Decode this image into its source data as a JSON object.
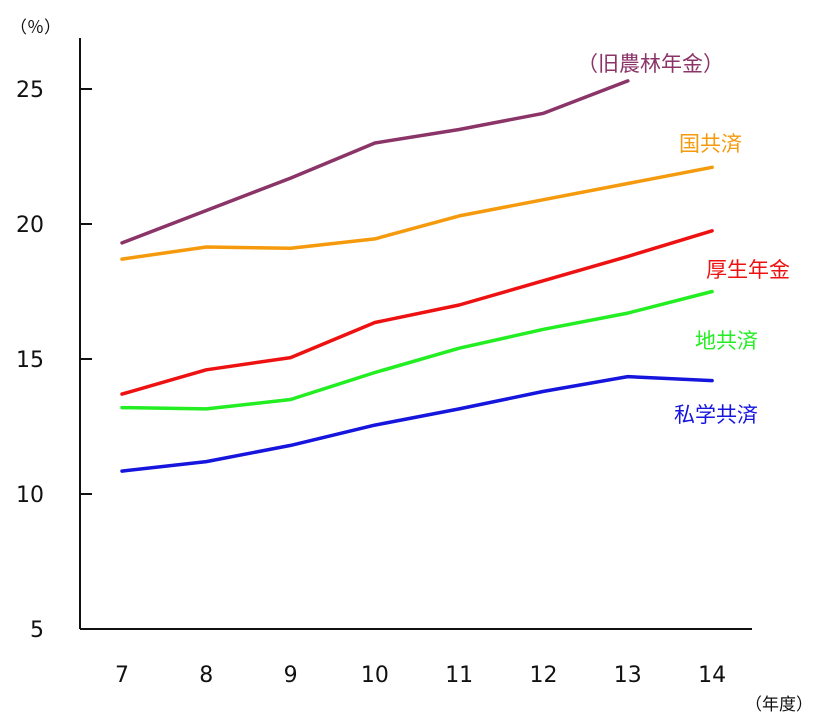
{
  "chart_data": {
    "type": "line",
    "title": "",
    "xlabel": "（年度）",
    "ylabel": "（％）",
    "categories": [
      "7",
      "8",
      "9",
      "10",
      "11",
      "12",
      "13",
      "14"
    ],
    "yticks": [
      "5",
      "10",
      "15",
      "20",
      "25"
    ],
    "ylim": [
      5,
      27.5
    ],
    "grid": false,
    "legend": "inline labels at right end of each line",
    "series": [
      {
        "name": "（旧農林年金）",
        "color": "#8b3468",
        "values": [
          19.3,
          20.5,
          21.7,
          23.0,
          23.5,
          24.1,
          25.3,
          null
        ]
      },
      {
        "name": "国共済",
        "color": "#f59a0c",
        "values": [
          18.7,
          19.15,
          19.1,
          19.45,
          20.3,
          20.9,
          21.5,
          22.1
        ]
      },
      {
        "name": "厚生年金",
        "color": "#ee1111",
        "values": [
          13.7,
          14.6,
          15.05,
          16.35,
          17.0,
          17.9,
          18.8,
          19.75
        ]
      },
      {
        "name": "地共済",
        "color": "#22ee22",
        "values": [
          13.2,
          13.15,
          13.5,
          14.5,
          15.4,
          16.1,
          16.7,
          17.5
        ]
      },
      {
        "name": "私学共済",
        "color": "#1515dd",
        "values": [
          10.85,
          11.2,
          11.8,
          12.55,
          13.15,
          13.8,
          14.35,
          14.2
        ]
      }
    ]
  }
}
